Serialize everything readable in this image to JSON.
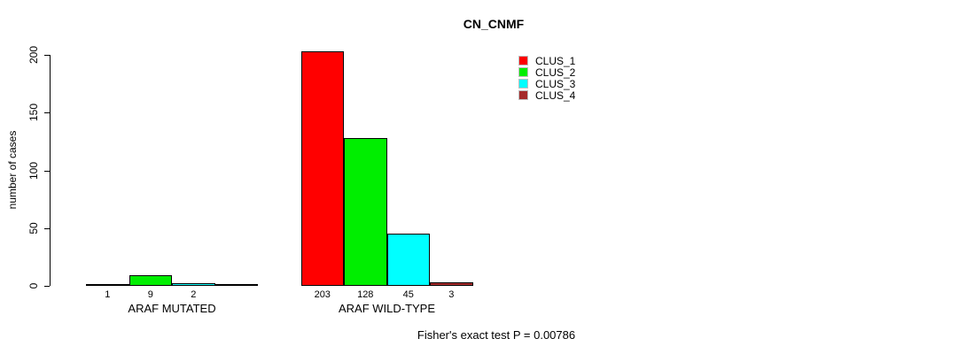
{
  "chart_data": {
    "type": "bar",
    "title": "CN_CNMF",
    "ylabel": "number of cases",
    "xlabel": "",
    "ylim": [
      0,
      200
    ],
    "y_ticks": [
      0,
      50,
      100,
      150,
      200
    ],
    "grid": false,
    "legend_position": "top-right-inside",
    "categories": [
      "ARAF MUTATED",
      "ARAF WILD-TYPE"
    ],
    "series": [
      {
        "name": "CLUS_1",
        "color": "#ff0000",
        "values": [
          1,
          203
        ]
      },
      {
        "name": "CLUS_2",
        "color": "#00ee00",
        "values": [
          9,
          128
        ]
      },
      {
        "name": "CLUS_3",
        "color": "#00ffff",
        "values": [
          2,
          45
        ]
      },
      {
        "name": "CLUS_4",
        "color": "#a52a2a",
        "values": [
          0,
          3
        ]
      }
    ],
    "bar_value_labels": [
      [
        "1",
        "9",
        "2",
        ""
      ],
      [
        "203",
        "128",
        "45",
        "3"
      ]
    ],
    "annotation": "Fisher's exact test P = 0.00786"
  }
}
